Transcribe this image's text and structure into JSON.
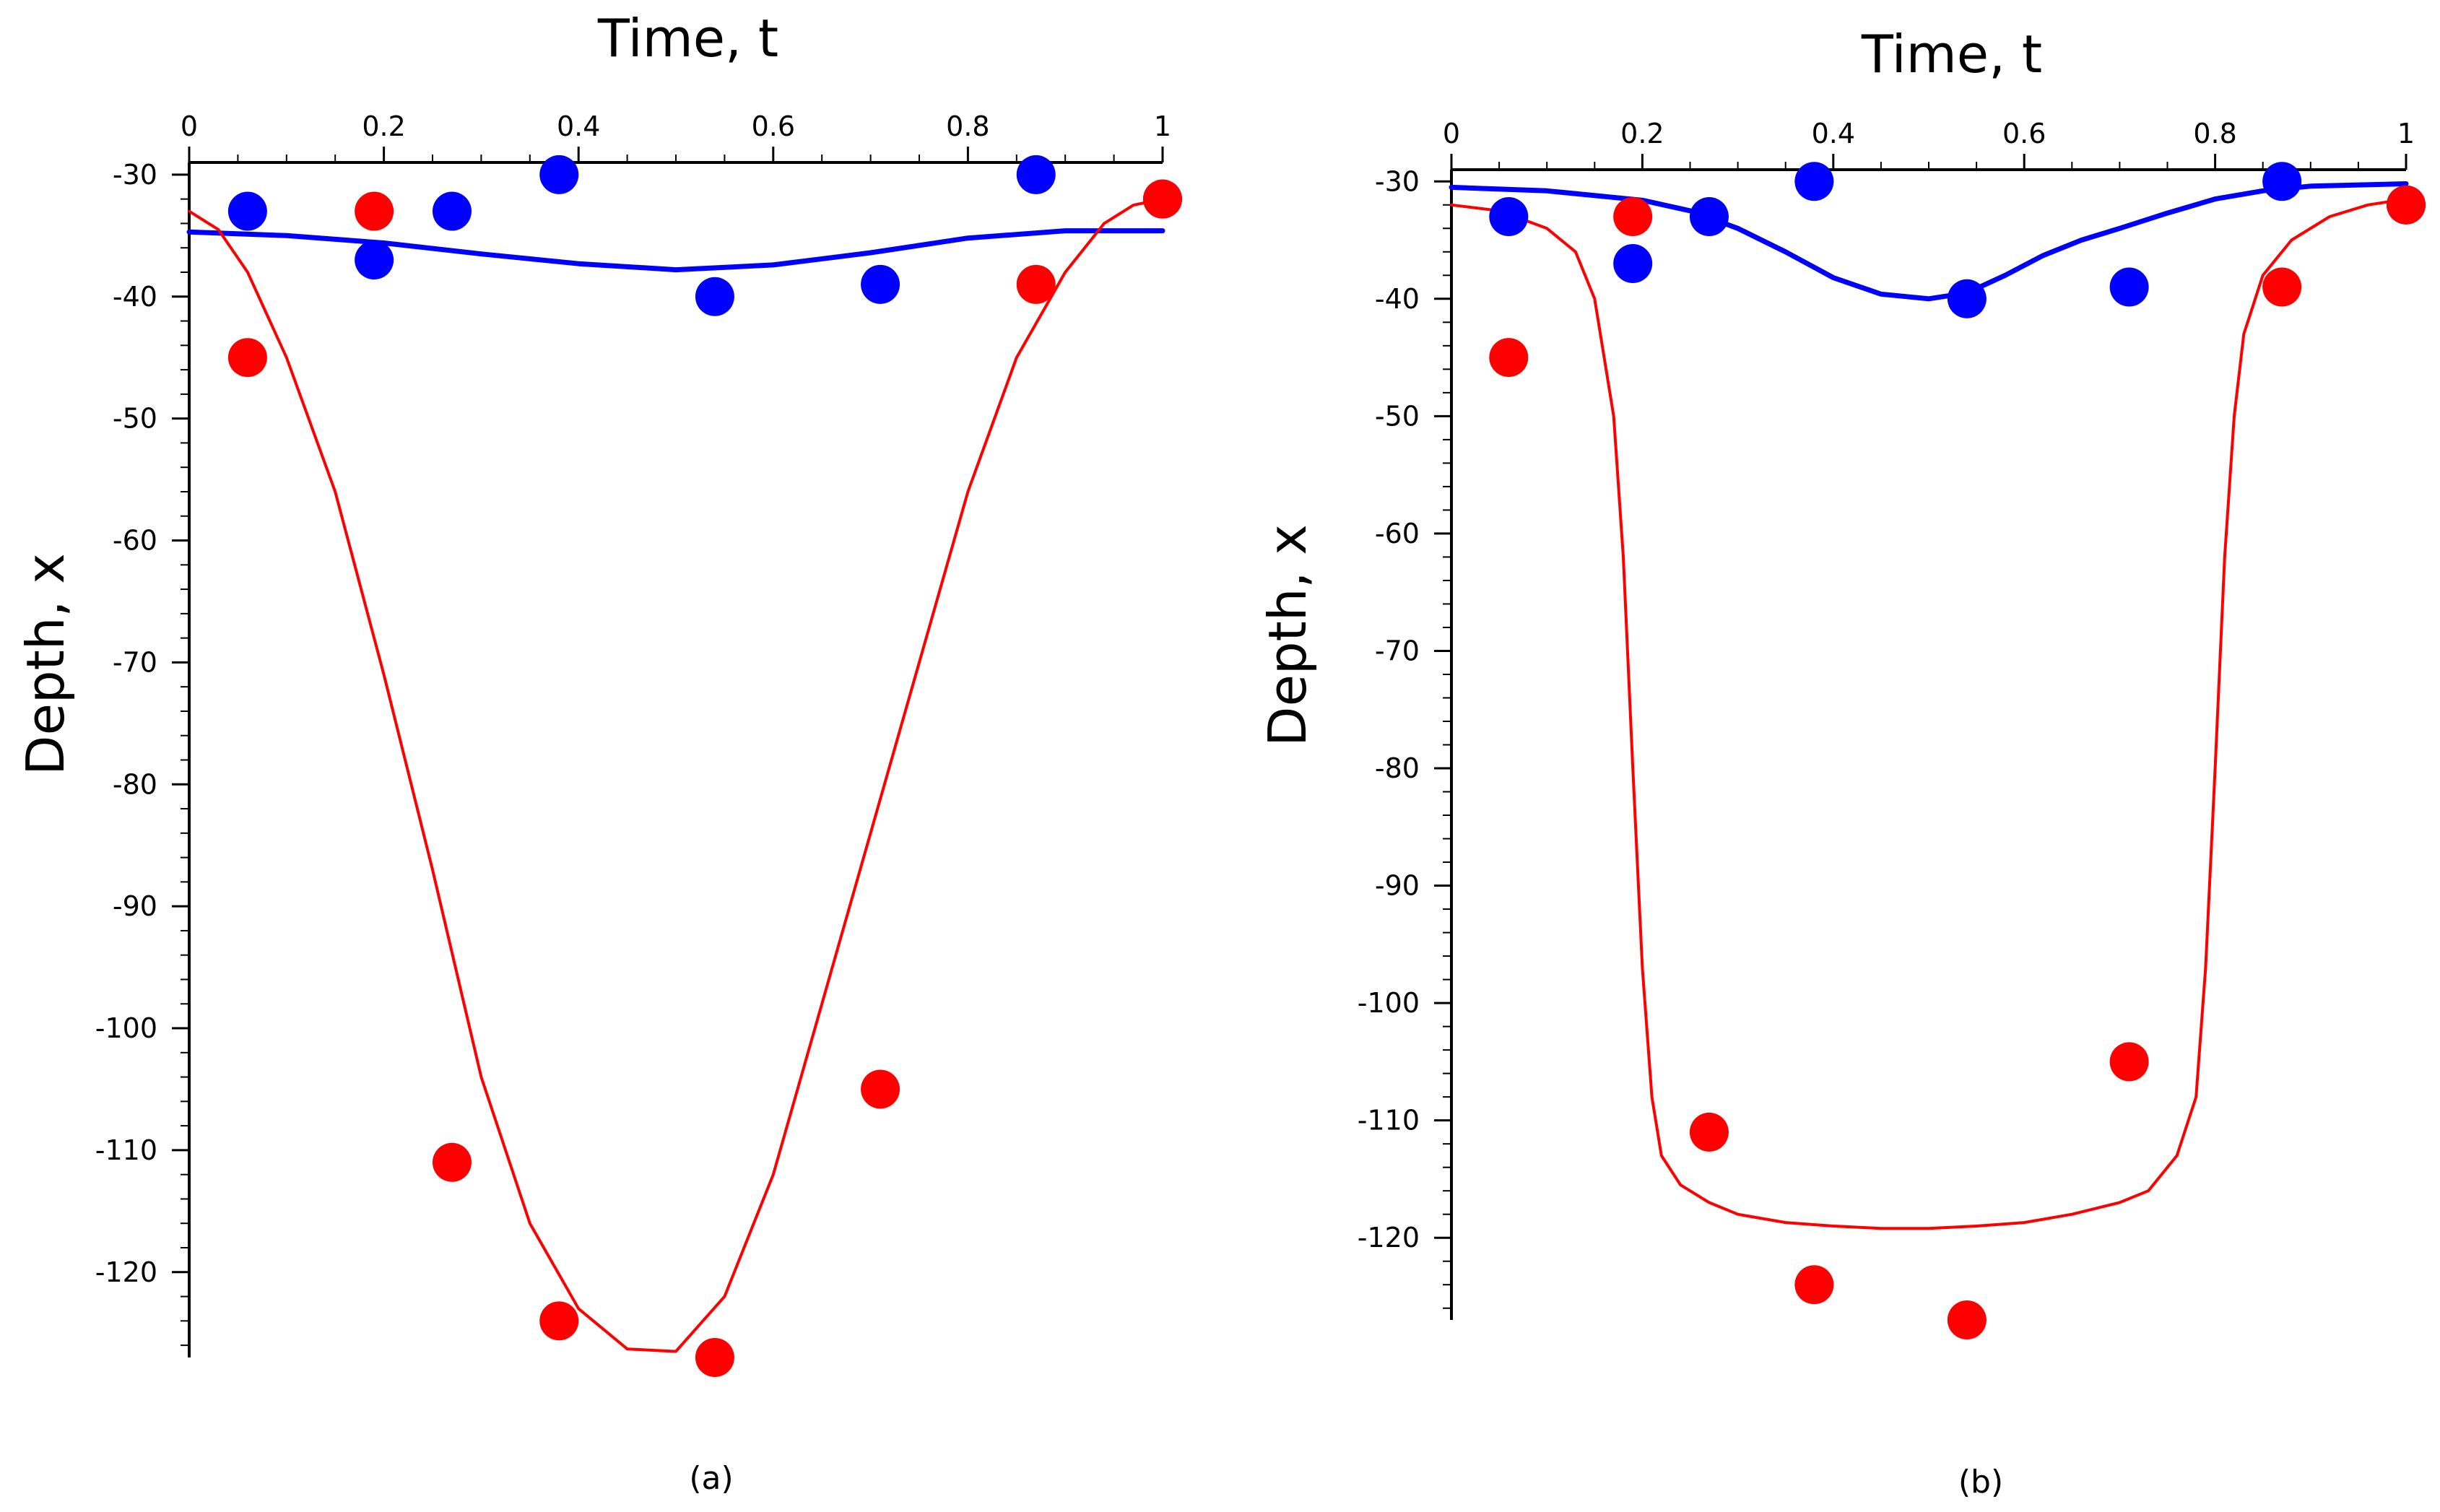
{
  "chart_data": [
    {
      "id": "a",
      "type": "scatter",
      "caption": "(a)",
      "xlabel": "Time, t",
      "ylabel": "Depth, x",
      "xlim": [
        0,
        1
      ],
      "ylim": [
        -127,
        -29
      ],
      "xticks": [
        0,
        0.2,
        0.4,
        0.6,
        0.8,
        1
      ],
      "xtick_labels": [
        "0",
        "0.2",
        "0.4",
        "0.6",
        "0.8",
        "1"
      ],
      "yticks": [
        -30,
        -40,
        -50,
        -60,
        -70,
        -80,
        -90,
        -100,
        -110,
        -120
      ],
      "ytick_labels": [
        "-30",
        "-40",
        "-50",
        "-60",
        "-70",
        "-80",
        "-90",
        "-100",
        "-110",
        "-120"
      ],
      "series": [
        {
          "name": "blue data",
          "kind": "points",
          "color": "#0000ff",
          "x": [
            0.06,
            0.19,
            0.27,
            0.38,
            0.54,
            0.71,
            0.87,
            1.0
          ],
          "y": [
            -33,
            -37,
            -33,
            -30,
            -40,
            -39,
            -30,
            -32
          ]
        },
        {
          "name": "red data",
          "kind": "points",
          "color": "#ff0000",
          "x": [
            0.06,
            0.19,
            0.27,
            0.38,
            0.54,
            0.71,
            0.87,
            1.0
          ],
          "y": [
            -45,
            -33,
            -111,
            -124,
            -127,
            -105,
            -39,
            -32
          ]
        },
        {
          "name": "blue fit",
          "kind": "line",
          "color": "#0000ff",
          "x": [
            0,
            0.1,
            0.2,
            0.3,
            0.4,
            0.5,
            0.6,
            0.7,
            0.8,
            0.9,
            1.0
          ],
          "y": [
            -34.7,
            -35.0,
            -35.6,
            -36.5,
            -37.3,
            -37.8,
            -37.4,
            -36.4,
            -35.2,
            -34.6,
            -34.6
          ]
        },
        {
          "name": "red fit",
          "kind": "line",
          "color": "#ff0000",
          "x": [
            0,
            0.03,
            0.06,
            0.1,
            0.15,
            0.2,
            0.25,
            0.3,
            0.35,
            0.4,
            0.45,
            0.5,
            0.55,
            0.6,
            0.65,
            0.7,
            0.75,
            0.8,
            0.85,
            0.9,
            0.94,
            0.97,
            1.0
          ],
          "y": [
            -33,
            -34.5,
            -38,
            -45,
            -56,
            -71,
            -87,
            -104,
            -116,
            -123,
            -126.3,
            -126.5,
            -122,
            -112,
            -98,
            -84,
            -70,
            -56,
            -45,
            -38,
            -34,
            -32.5,
            -32
          ]
        }
      ]
    },
    {
      "id": "b",
      "type": "scatter",
      "caption": "(b)",
      "xlabel": "Time, t",
      "ylabel": "Depth, x",
      "xlim": [
        0,
        1
      ],
      "ylim": [
        -127,
        -29
      ],
      "xticks": [
        0,
        0.2,
        0.4,
        0.6,
        0.8,
        1
      ],
      "xtick_labels": [
        "0",
        "0.2",
        "0.4",
        "0.6",
        "0.8",
        "1"
      ],
      "yticks": [
        -30,
        -40,
        -50,
        -60,
        -70,
        -80,
        -90,
        -100,
        -110,
        -120
      ],
      "ytick_labels": [
        "-30",
        "-40",
        "-50",
        "-60",
        "-70",
        "-80",
        "-90",
        "-100",
        "-110",
        "-120"
      ],
      "series": [
        {
          "name": "blue data",
          "kind": "points",
          "color": "#0000ff",
          "x": [
            0.06,
            0.19,
            0.27,
            0.38,
            0.54,
            0.71,
            0.87,
            1.0
          ],
          "y": [
            -33,
            -37,
            -33,
            -30,
            -40,
            -39,
            -30,
            -32
          ]
        },
        {
          "name": "red data",
          "kind": "points",
          "color": "#ff0000",
          "x": [
            0.06,
            0.19,
            0.27,
            0.38,
            0.54,
            0.71,
            0.87,
            1.0
          ],
          "y": [
            -45,
            -33,
            -111,
            -124,
            -127,
            -105,
            -39,
            -32
          ]
        },
        {
          "name": "blue fit",
          "kind": "line",
          "color": "#0000ff",
          "x": [
            0,
            0.1,
            0.2,
            0.25,
            0.3,
            0.35,
            0.4,
            0.45,
            0.5,
            0.54,
            0.58,
            0.62,
            0.66,
            0.7,
            0.75,
            0.8,
            0.85,
            0.9,
            1.0
          ],
          "y": [
            -30.5,
            -30.8,
            -31.6,
            -32.5,
            -34,
            -36,
            -38.2,
            -39.6,
            -40,
            -39.5,
            -38,
            -36.3,
            -35,
            -34,
            -32.7,
            -31.5,
            -30.8,
            -30.4,
            -30.2
          ]
        },
        {
          "name": "red fit",
          "kind": "line",
          "color": "#ff0000",
          "x": [
            0,
            0.05,
            0.1,
            0.13,
            0.15,
            0.17,
            0.18,
            0.19,
            0.2,
            0.21,
            0.22,
            0.24,
            0.27,
            0.3,
            0.35,
            0.4,
            0.45,
            0.5,
            0.55,
            0.6,
            0.65,
            0.7,
            0.73,
            0.76,
            0.78,
            0.79,
            0.8,
            0.81,
            0.82,
            0.83,
            0.85,
            0.88,
            0.92,
            0.96,
            1.0
          ],
          "y": [
            -32,
            -32.5,
            -34,
            -36,
            -40,
            -50,
            -62,
            -80,
            -97,
            -108,
            -113,
            -115.5,
            -117,
            -118,
            -118.7,
            -119,
            -119.2,
            -119.2,
            -119,
            -118.7,
            -118,
            -117,
            -116,
            -113,
            -108,
            -97,
            -80,
            -62,
            -50,
            -43,
            -38,
            -35,
            -33,
            -32,
            -31.5
          ]
        }
      ]
    }
  ]
}
